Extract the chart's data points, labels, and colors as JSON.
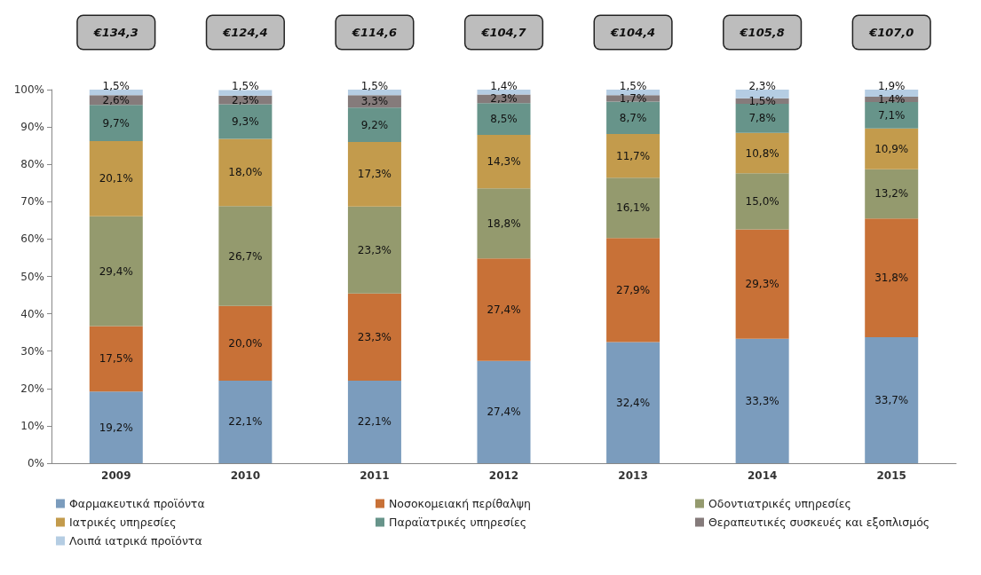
{
  "chart_data": {
    "type": "bar",
    "stacked": true,
    "categories": [
      "2009",
      "2010",
      "2011",
      "2012",
      "2013",
      "2014",
      "2015"
    ],
    "ylim": [
      0,
      100
    ],
    "yticks": [
      {
        "value": 0,
        "label": "0%"
      },
      {
        "value": 10,
        "label": "10%"
      },
      {
        "value": 20,
        "label": "20%"
      },
      {
        "value": 30,
        "label": "30%"
      },
      {
        "value": 40,
        "label": "40%"
      },
      {
        "value": 50,
        "label": "50%"
      },
      {
        "value": 60,
        "label": "60%"
      },
      {
        "value": 70,
        "label": "70%"
      },
      {
        "value": 80,
        "label": "80%"
      },
      {
        "value": 90,
        "label": "90%"
      },
      {
        "value": 100,
        "label": "100%"
      }
    ],
    "grid": false,
    "legend": "bottom",
    "series": [
      {
        "name": "Φαρμακευτικά προϊόντα",
        "color": "#7b9cbd",
        "values": [
          19.2,
          22.1,
          22.1,
          27.4,
          32.4,
          33.3,
          33.7
        ],
        "value_labels": [
          "19,2%",
          "22,1%",
          "22,1%",
          "27,4%",
          "32,4%",
          "33,3%",
          "33,7%"
        ]
      },
      {
        "name": "Νοσοκομειακή περίθαλψη",
        "color": "#c87137",
        "values": [
          17.5,
          20.0,
          23.3,
          27.4,
          27.9,
          29.3,
          31.8
        ],
        "value_labels": [
          "17,5%",
          "20,0%",
          "23,3%",
          "27,4%",
          "27,9%",
          "29,3%",
          "31,8%"
        ]
      },
      {
        "name": "Οδοντιατρικές υπηρεσίες",
        "color": "#949a6e",
        "values": [
          29.4,
          26.7,
          23.3,
          18.8,
          16.1,
          15.0,
          13.2
        ],
        "value_labels": [
          "29,4%",
          "26,7%",
          "23,3%",
          "18,8%",
          "16,1%",
          "15,0%",
          "13,2%"
        ]
      },
      {
        "name": "Ιατρικές υπηρεσίες",
        "color": "#c39b4c",
        "values": [
          20.1,
          18.0,
          17.3,
          14.3,
          11.7,
          10.8,
          10.9
        ],
        "value_labels": [
          "20,1%",
          "18,0%",
          "17,3%",
          "14,3%",
          "11,7%",
          "10,8%",
          "10,9%"
        ]
      },
      {
        "name": "Παραϊατρικές υπηρεσίες",
        "color": "#67948a",
        "values": [
          9.7,
          9.3,
          9.2,
          8.5,
          8.7,
          7.8,
          7.1
        ],
        "value_labels": [
          "9,7%",
          "9,3%",
          "9,2%",
          "8,5%",
          "8,7%",
          "7,8%",
          "7,1%"
        ]
      },
      {
        "name": "Θεραπευτικές συσκευές και εξοπλισμός",
        "color": "#857b7b",
        "values": [
          2.6,
          2.3,
          3.3,
          2.3,
          1.7,
          1.5,
          1.4
        ],
        "value_labels": [
          "2,6%",
          "2,3%",
          "3,3%",
          "2,3%",
          "1,7%",
          "1,5%",
          "1,4%"
        ]
      },
      {
        "name": "Λοιπά ιατρικά προϊόντα",
        "color": "#b5cde3",
        "values": [
          1.5,
          1.5,
          1.5,
          1.4,
          1.5,
          2.3,
          1.9
        ],
        "value_labels": [
          "1,5%",
          "1,5%",
          "1,5%",
          "1,4%",
          "1,5%",
          "2,3%",
          "1,9%"
        ]
      }
    ],
    "annotations": [
      "€134,3",
      "€124,4",
      "€114,6",
      "€104,7",
      "€104,4",
      "€105,8",
      "€107,0"
    ]
  }
}
